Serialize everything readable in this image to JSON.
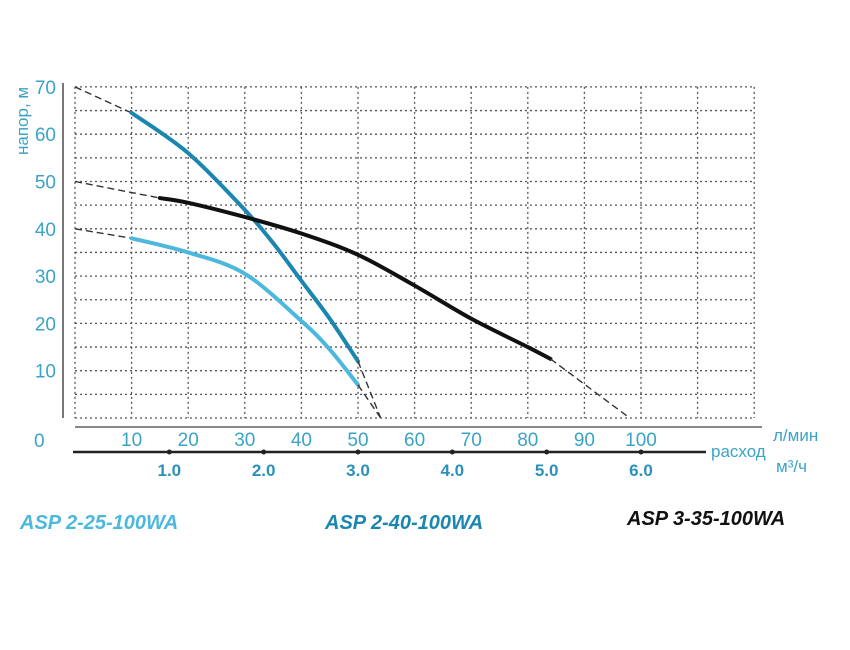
{
  "chart_data": {
    "type": "line",
    "ylabel": "напор, м",
    "xlabel": "расход",
    "x_unit_primary": "л/мин",
    "x_unit_secondary": "м³/ч",
    "origin_label": "0",
    "xlim": [
      0,
      120
    ],
    "ylim": [
      0,
      70
    ],
    "y_ticks": [
      10,
      20,
      30,
      40,
      50,
      60,
      70
    ],
    "x_ticks": [
      10,
      20,
      30,
      40,
      50,
      60,
      70,
      80,
      90,
      100
    ],
    "x2_ticks": [
      "1.0",
      "2.0",
      "3.0",
      "4.0",
      "5.0",
      "6.0"
    ],
    "grid": true,
    "legend_placement": "bottom",
    "series": [
      {
        "name": "ASP 2-25-100WA",
        "color": "#4cb8dd",
        "dashed_start": [
          [
            0,
            40
          ],
          [
            10,
            38
          ]
        ],
        "points": [
          [
            10,
            38
          ],
          [
            20,
            35
          ],
          [
            30,
            30.5
          ],
          [
            40,
            20.5
          ],
          [
            45,
            14.5
          ],
          [
            50,
            7
          ]
        ],
        "dashed_end": [
          [
            50,
            7
          ],
          [
            54,
            0
          ]
        ]
      },
      {
        "name": "ASP 2-40-100WA",
        "color": "#1b86b0",
        "dashed_start": [
          [
            0,
            70
          ],
          [
            10,
            64.5
          ]
        ],
        "points": [
          [
            10,
            64.5
          ],
          [
            20,
            56
          ],
          [
            30,
            44
          ],
          [
            35,
            37
          ],
          [
            40,
            29
          ],
          [
            45,
            21
          ],
          [
            50,
            12
          ]
        ],
        "dashed_end": [
          [
            50,
            12
          ],
          [
            54,
            0
          ]
        ]
      },
      {
        "name": "ASP 3-35-100WA",
        "color": "#111111",
        "dashed_start": [
          [
            0,
            50
          ],
          [
            15,
            46.5
          ]
        ],
        "points": [
          [
            15,
            46.5
          ],
          [
            20,
            45.5
          ],
          [
            30,
            42.5
          ],
          [
            40,
            39
          ],
          [
            50,
            34.5
          ],
          [
            60,
            28
          ],
          [
            70,
            21
          ],
          [
            80,
            15
          ],
          [
            84,
            12.5
          ]
        ],
        "dashed_end": [
          [
            84,
            12.5
          ],
          [
            98,
            0
          ]
        ]
      }
    ]
  }
}
